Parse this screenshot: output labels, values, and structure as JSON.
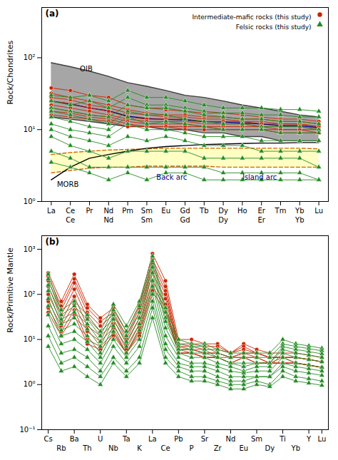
{
  "chart_data": [
    {
      "type": "line",
      "title": "(a)",
      "ylabel": "Rock/Chondrites",
      "log": "y",
      "grid": false,
      "legend": "upper right",
      "categories": [
        "La",
        "Ce",
        "Pr",
        "Nd",
        "Pm",
        "Sm",
        "Eu",
        "Gd",
        "Tb",
        "Dy",
        "Ho",
        "Er",
        "Tm",
        "Yb",
        "Lu"
      ],
      "categories_row2": [
        null,
        "Ce",
        null,
        "Nd",
        null,
        "Sm",
        null,
        "Gd",
        null,
        "Dy",
        null,
        "Er",
        null,
        "Yb",
        null
      ],
      "ylim": [
        1,
        500
      ],
      "yticks": [
        {
          "value": 1,
          "label": "10⁰"
        },
        {
          "value": 10,
          "label": "10¹"
        },
        {
          "value": 100,
          "label": "10²"
        }
      ],
      "series": [
        {
          "type": "band",
          "color": "#808080",
          "lower": [
            15,
            14,
            13,
            12,
            11,
            11,
            10,
            10,
            9,
            9,
            8,
            8,
            7,
            7,
            7
          ],
          "upper": [
            85,
            75,
            65,
            55,
            45,
            40,
            35,
            30,
            28,
            25,
            22,
            20,
            18,
            16,
            15
          ]
        },
        {
          "type": "line",
          "color": "#404040",
          "values": [
            85,
            75,
            65,
            55,
            45,
            40,
            35,
            30,
            28,
            25,
            22,
            20,
            18,
            16,
            15
          ]
        },
        {
          "type": "line",
          "color": "#404040",
          "values": [
            15,
            14,
            13,
            12,
            11,
            11,
            10,
            10,
            9,
            9,
            8,
            8,
            7,
            7,
            7
          ]
        },
        {
          "type": "band",
          "color": "#ffffaa",
          "lower": [
            2.5,
            2.7,
            2.9,
            3.0,
            3.0,
            3.1,
            3.1,
            3.1,
            3.1,
            3.0,
            3.0,
            3.0,
            3.0,
            3.0,
            3.0
          ],
          "upper": [
            4.5,
            4.8,
            5.0,
            5.2,
            5.3,
            5.4,
            5.5,
            5.5,
            5.5,
            5.5,
            5.5,
            5.5,
            5.5,
            5.5,
            5.4
          ]
        },
        {
          "type": "line",
          "color": "#cc6600",
          "line_style": "dashed",
          "values": [
            4.5,
            4.8,
            5.0,
            5.2,
            5.3,
            5.4,
            5.5,
            5.5,
            5.5,
            5.5,
            5.5,
            5.5,
            5.5,
            5.5,
            5.4
          ]
        },
        {
          "type": "line",
          "color": "#cc6600",
          "line_style": "dashed",
          "values": [
            2.5,
            2.7,
            2.9,
            3.0,
            3.0,
            3.1,
            3.1,
            3.1,
            3.1,
            3.0,
            3.0,
            3.0,
            3.0,
            3.0,
            3.0
          ]
        },
        {
          "type": "line",
          "color": "#000000",
          "values": [
            2.0,
            3.0,
            4.0,
            4.5,
            5.0,
            5.5,
            5.8,
            6.0,
            6.2,
            6.3,
            6.4,
            6.5,
            6.5,
            6.6,
            6.6
          ]
        },
        {
          "type": "line",
          "color": "#000080",
          "values": [
            24.875,
            22.75,
            20,
            18.25,
            15.375,
            14.25,
            13.875,
            13.625,
            12.875,
            12.75,
            12.375,
            12,
            11.375,
            11.375,
            10.625
          ]
        },
        {
          "type": "line",
          "name": "Intermediate-mafic rocks (this study)",
          "color": "#cc2200",
          "marker": "circle",
          "values": [
            [
              38,
              35,
              30,
              28,
              22,
              20,
              19,
              18,
              17,
              17,
              16,
              15,
              14,
              14,
              13
            ],
            [
              32,
              28,
              25,
              22,
              19,
              17,
              16,
              16,
              15,
              15,
              14,
              14,
              13,
              13,
              12
            ],
            [
              28,
              26,
              22,
              20,
              17,
              16,
              15,
              15,
              14,
              14,
              13,
              13,
              12,
              12,
              11
            ],
            [
              25,
              23,
              20,
              18,
              15,
              14,
              14,
              14,
              13,
              13,
              13,
              12,
              12,
              12,
              11
            ],
            [
              22,
              20,
              18,
              16,
              14,
              13,
              13,
              13,
              12,
              12,
              12,
              11,
              11,
              11,
              10
            ],
            [
              20,
              18,
              16,
              15,
              13,
              12,
              12,
              12,
              11,
              11,
              11,
              11,
              10,
              10,
              10
            ],
            [
              18,
              17,
              15,
              14,
              12,
              11,
              11,
              11,
              11,
              10,
              10,
              10,
              10,
              10,
              9
            ],
            [
              16,
              15,
              14,
              13,
              11,
              11,
              11,
              10,
              10,
              10,
              10,
              10,
              9,
              9,
              9
            ]
          ]
        },
        {
          "type": "line",
          "name": "Felsic rocks (this study)",
          "color": "#228b22",
          "marker": "triangle",
          "values": [
            [
              30,
              28,
              30,
              25,
              35,
              28,
              28,
              25,
              22,
              20,
              20,
              20,
              19,
              19,
              18
            ],
            [
              25,
              22,
              25,
              20,
              28,
              22,
              22,
              20,
              18,
              17,
              17,
              16,
              16,
              15,
              15
            ],
            [
              20,
              18,
              16,
              15,
              22,
              20,
              20,
              18,
              16,
              15,
              14,
              14,
              13,
              13,
              12
            ],
            [
              18,
              16,
              14,
              12,
              18,
              16,
              16,
              14,
              13,
              12,
              12,
              11,
              11,
              11,
              10
            ],
            [
              15,
              13,
              11,
              10,
              15,
              12,
              13,
              12,
              11,
              10,
              10,
              10,
              9,
              9,
              9
            ],
            [
              12,
              10,
              9,
              8,
              12,
              10,
              10,
              9,
              8,
              8,
              8,
              7,
              7,
              7,
              7
            ],
            [
              10,
              8,
              7,
              6,
              8,
              7,
              8,
              7,
              6,
              6,
              6,
              5,
              5,
              5,
              5
            ],
            [
              8,
              6,
              5,
              4,
              5,
              5,
              5,
              5,
              4,
              4,
              4,
              4,
              4,
              4,
              3
            ],
            [
              5,
              4,
              3,
              3,
              3,
              3,
              3,
              3,
              3,
              2.5,
              2.5,
              2.5,
              2.5,
              2.5,
              2
            ],
            [
              3.5,
              3,
              2.5,
              2,
              2.5,
              2,
              2.5,
              2.5,
              2,
              2,
              2,
              2,
              2,
              2,
              2
            ]
          ]
        }
      ],
      "annotations": [
        {
          "text": "OIB",
          "x": 1.5,
          "y": 65
        },
        {
          "text": "MORB",
          "x": 0.3,
          "y": 1.6
        },
        {
          "text": "Back arc",
          "x": 5.5,
          "y": 2.0,
          "color": "#000080"
        },
        {
          "text": "Island arc",
          "x": 10.0,
          "y": 2.0,
          "color": "#000080"
        }
      ]
    },
    {
      "type": "line",
      "title": "(b)",
      "ylabel": "Rock/Primitive Mantle",
      "log": "y",
      "grid": false,
      "categories": [
        "Cs",
        null,
        "Ba",
        null,
        "U",
        null,
        "Ta",
        null,
        "La",
        null,
        "Pb",
        null,
        "Sr",
        null,
        "Nd",
        null,
        "Sm",
        null,
        "Ti",
        null,
        "Y",
        "Lu"
      ],
      "categories_row2": [
        null,
        "Rb",
        null,
        "Th",
        null,
        "Nb",
        null,
        "K",
        null,
        "Ce",
        null,
        "P",
        null,
        "Zr",
        null,
        "Eu",
        null,
        "Dy",
        null,
        "Yb",
        null,
        null
      ],
      "ylim": [
        0.1,
        2000
      ],
      "yticks": [
        {
          "value": 0.1,
          "label": "10⁻¹"
        },
        {
          "value": 1,
          "label": "10⁰"
        },
        {
          "value": 10,
          "label": "10¹"
        },
        {
          "value": 100,
          "label": "10²"
        },
        {
          "value": 1000,
          "label": "10³"
        }
      ],
      "series": [
        {
          "type": "line",
          "color": "#cc2200",
          "marker": "circle",
          "values": [
            [
              300,
              70,
              280,
              60,
              30,
              50,
              15,
              60,
              800,
              200,
              10,
              10,
              8,
              8,
              5,
              8,
              6,
              5,
              5,
              5,
              4.5,
              4
            ],
            [
              250,
              55,
              220,
              50,
              25,
              40,
              12,
              50,
              600,
              150,
              8,
              8,
              7,
              7,
              5,
              7,
              5,
              4,
              4,
              4,
              3.6,
              3.2
            ],
            [
              200,
              45,
              180,
              40,
              20,
              35,
              10,
              40,
              500,
              120,
              7,
              7,
              6,
              6,
              5,
              6,
              5,
              4,
              4,
              4,
              3.6,
              3.2
            ],
            [
              150,
              35,
              130,
              30,
              15,
              28,
              8,
              30,
              400,
              100,
              6,
              6,
              5,
              5,
              4,
              5,
              5,
              4,
              4,
              4,
              3.6,
              3.2
            ],
            [
              100,
              25,
              90,
              20,
              12,
              22,
              6,
              22,
              300,
              80,
              6,
              6,
              5,
              5,
              4,
              5,
              4,
              3,
              4,
              3,
              2.7,
              2.4
            ],
            [
              70,
              20,
              60,
              15,
              9,
              18,
              5,
              18,
              200,
              60,
              5,
              5,
              4,
              4,
              4,
              4,
              4,
              3,
              3,
              3,
              2.7,
              2.4
            ],
            [
              50,
              15,
              45,
              10,
              7,
              14,
              5,
              14,
              150,
              50,
              5,
              5,
              4,
              4,
              3,
              4,
              3,
              3,
              3,
              3,
              2.7,
              2.4
            ],
            [
              40,
              12,
              35,
              8,
              6,
              12,
              5,
              12,
              120,
              40,
              5,
              5,
              4,
              4,
              3,
              4,
              3,
              3,
              3,
              3,
              2.7,
              2.4
            ]
          ]
        },
        {
          "type": "line",
          "color": "#228b22",
          "marker": "triangle",
          "values": [
            [
              280,
              45,
              70,
              35,
              15,
              60,
              20,
              70,
              700,
              50,
              10,
              8,
              8,
              6,
              5,
              5,
              5,
              5,
              10,
              8,
              7.2,
              6.4
            ],
            [
              220,
              35,
              55,
              28,
              12,
              45,
              15,
              55,
              550,
              40,
              8,
              7,
              7,
              5,
              4,
              4,
              4,
              4,
              8,
              7,
              6.3,
              5.6
            ],
            [
              160,
              28,
              40,
              22,
              9,
              35,
              12,
              40,
              400,
              30,
              7,
              6,
              6,
              4,
              3,
              3,
              3,
              3,
              7,
              6,
              5.4,
              4.8
            ],
            [
              120,
              22,
              30,
              17,
              7,
              28,
              9,
              30,
              300,
              25,
              6,
              5,
              5,
              4,
              3,
              2.5,
              3,
              3,
              6,
              5,
              4.5,
              4
            ],
            [
              80,
              16,
              22,
              12,
              5,
              20,
              7,
              22,
              200,
              18,
              5,
              4,
              4,
              3,
              2.5,
              2,
              2.5,
              2.5,
              5,
              4,
              3.6,
              3.2
            ],
            [
              55,
              12,
              15,
              9,
              4,
              15,
              5,
              16,
              150,
              12,
              4,
              3,
              3,
              2.5,
              2,
              1.8,
              2,
              2,
              4,
              3,
              2.7,
              2.4
            ],
            [
              35,
              8,
              10,
              6,
              3,
              10,
              4,
              10,
              100,
              8,
              3,
              2.5,
              2.5,
              2,
              1.5,
              1.5,
              1.5,
              1.5,
              3,
              2.5,
              2.25,
              2
            ],
            [
              20,
              5,
              6,
              4,
              2,
              7,
              3,
              7,
              70,
              6,
              2.5,
              2,
              2,
              1.5,
              1.2,
              1.2,
              1.5,
              1.5,
              2.5,
              2,
              1.8,
              1.6
            ],
            [
              12,
              3,
              4,
              2.5,
              1.5,
              4,
              2,
              4,
              50,
              4,
              2,
              1.5,
              1.5,
              1.2,
              1,
              1,
              1.2,
              1,
              2,
              1.5,
              1.35,
              1.2
            ],
            [
              7,
              2,
              2.5,
              1.5,
              1,
              3,
              1.5,
              3,
              30,
              3,
              1.5,
              1.2,
              1.2,
              1,
              0.8,
              0.8,
              1,
              0.9,
              1.5,
              1.2,
              1.08,
              0.96
            ]
          ]
        }
      ]
    }
  ]
}
